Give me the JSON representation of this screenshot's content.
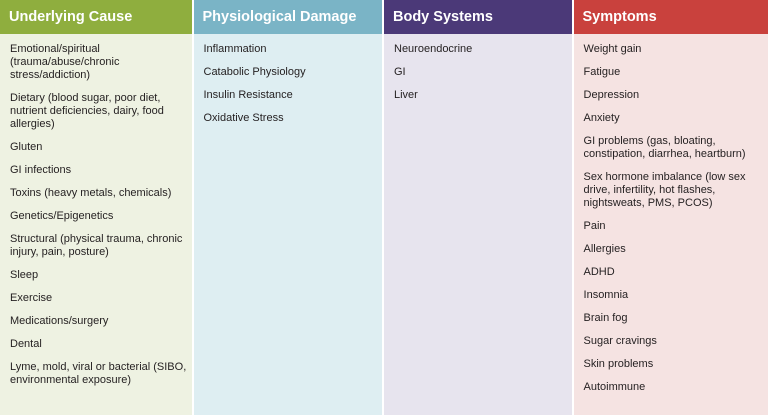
{
  "columns": [
    {
      "key": "cause",
      "header": "Underlying Cause",
      "header_color": "#8fae3e",
      "body_color": "#eef2e2",
      "items": [
        "Emotional/spiritual (trauma/abuse/chronic stress/addiction)",
        "Dietary (blood sugar, poor diet, nutrient deficiencies, dairy, food allergies)",
        "Gluten",
        "GI infections",
        "Toxins (heavy metals, chemicals)",
        "Genetics/Epigenetics",
        "Structural (physical trauma, chronic injury, pain, posture)",
        "Sleep",
        "Exercise",
        "Medications/surgery",
        "Dental",
        "Lyme, mold, viral or bacterial (SIBO, environmental exposure)"
      ]
    },
    {
      "key": "damage",
      "header": "Physiological Damage",
      "header_color": "#7ab4c6",
      "body_color": "#deeef2",
      "items": [
        "Inflammation",
        "Catabolic Physiology",
        "Insulin Resistance",
        "Oxidative Stress"
      ]
    },
    {
      "key": "systems",
      "header": "Body Systems",
      "header_color": "#4b3978",
      "body_color": "#e7e4ee",
      "items": [
        "Neuroendocrine",
        "GI",
        "Liver"
      ]
    },
    {
      "key": "symptoms",
      "header": "Symptoms",
      "header_color": "#c9413d",
      "body_color": "#f5e3e2",
      "items": [
        "Weight gain",
        "Fatigue",
        "Depression",
        "Anxiety",
        "GI problems (gas, bloating, constipation, diarrhea, heartburn)",
        "Sex hormone imbalance (low sex drive, infertility, hot flashes, nightsweats, PMS, PCOS)",
        "Pain",
        "Allergies",
        "ADHD",
        "Insomnia",
        "Brain fog",
        "Sugar cravings",
        "Skin problems",
        "Autoimmune"
      ]
    }
  ]
}
